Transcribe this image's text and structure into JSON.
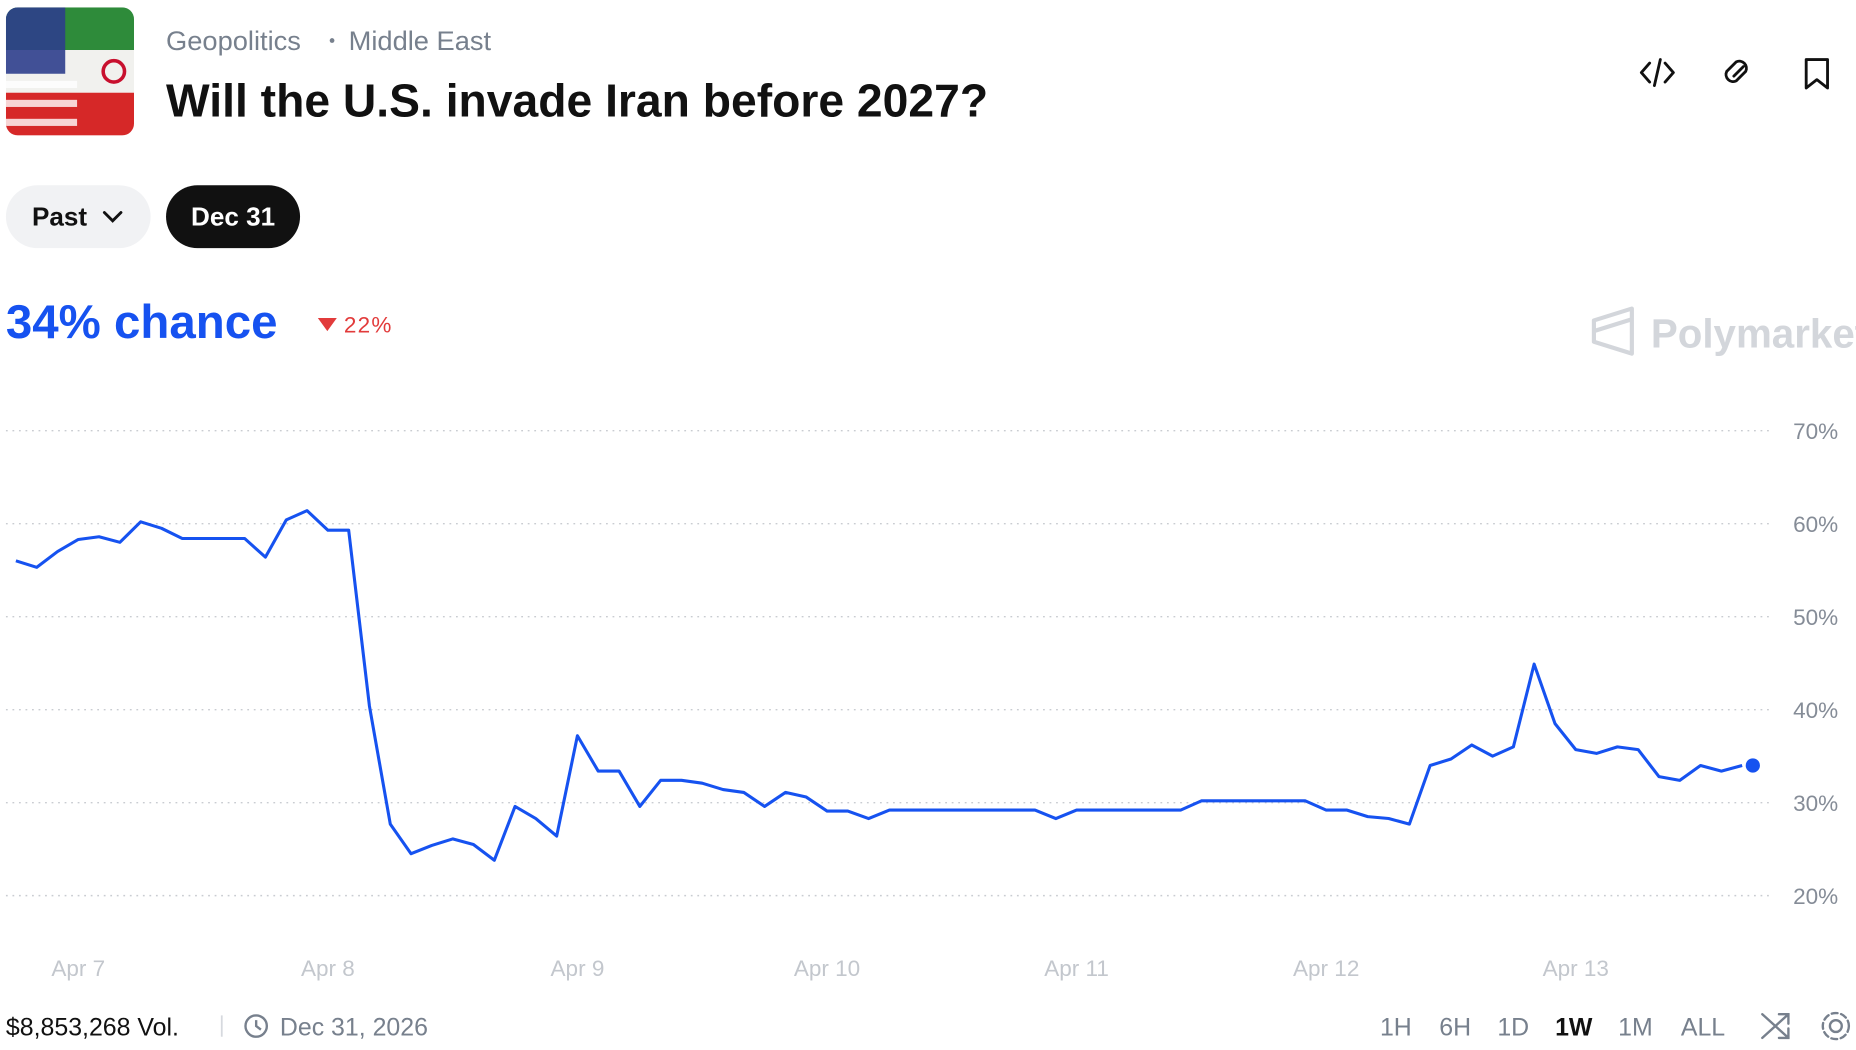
{
  "header": {
    "breadcrumbs": [
      "Geopolitics",
      "Middle East"
    ],
    "title": "Will the U.S. invade Iran before 2027?"
  },
  "filters": [
    "Past",
    "Dec 31"
  ],
  "chance": "34% chance",
  "change": "22%",
  "watermark": "Polymarket",
  "footer": {
    "volume": "$8,853,268 Vol.",
    "end_date": "Dec 31, 2026",
    "timeframes": [
      "1H",
      "6H",
      "1D",
      "1W",
      "1M",
      "ALL"
    ],
    "active_timeframe": 3
  },
  "chart_data": {
    "type": "line",
    "categories": [
      null,
      null,
      null,
      "Apr 7",
      null,
      null,
      null,
      null,
      null,
      null,
      null,
      null,
      null,
      null,
      null,
      "Apr 8",
      null,
      null,
      null,
      null,
      null,
      null,
      null,
      null,
      null,
      null,
      null,
      "Apr 9",
      null,
      null,
      null,
      null,
      null,
      null,
      null,
      null,
      null,
      null,
      null,
      "Apr 10",
      null,
      null,
      null,
      null,
      null,
      null,
      null,
      null,
      null,
      null,
      null,
      "Apr 11",
      null,
      null,
      null,
      null,
      null,
      null,
      null,
      null,
      null,
      null,
      null,
      "Apr 12",
      null,
      null,
      null,
      null,
      null,
      null,
      null,
      null,
      null,
      null,
      null,
      "Apr 13",
      null,
      null,
      null,
      null,
      null,
      null,
      null,
      null
    ],
    "series": [
      {
        "name": "Dec 31",
        "color": "#1652f0",
        "values": [
          56,
          55.3,
          57,
          58.3,
          58.6,
          58,
          60.2,
          59.5,
          58.4,
          58.4,
          58.4,
          58.4,
          56.4,
          60.4,
          61.4,
          59.3,
          59.3,
          40.4,
          27.7,
          24.5,
          25.4,
          26.1,
          25.5,
          23.8,
          29.6,
          28.3,
          26.4,
          37.2,
          33.4,
          33.4,
          29.6,
          32.4,
          32.4,
          32.1,
          31.4,
          31.1,
          29.6,
          31.1,
          30.6,
          29.1,
          29.1,
          28.3,
          29.2,
          29.2,
          29.2,
          29.2,
          29.2,
          29.2,
          29.2,
          29.2,
          28.3,
          29.2,
          29.2,
          29.2,
          29.2,
          29.2,
          29.2,
          30.2,
          30.2,
          30.2,
          30.2,
          30.2,
          30.2,
          29.2,
          29.2,
          28.5,
          28.3,
          27.7,
          34,
          34.7,
          36.2,
          35,
          36,
          44.9,
          38.5,
          35.7,
          35.3,
          36,
          35.7,
          32.8,
          32.4,
          34,
          33.4,
          34
        ]
      }
    ],
    "ylim": [
      16,
      74
    ],
    "yticks": [
      {
        "value": 20,
        "label": "20%"
      },
      {
        "value": 30,
        "label": "30%"
      },
      {
        "value": 40,
        "label": "40%"
      },
      {
        "value": 50,
        "label": "50%"
      },
      {
        "value": 60,
        "label": "60%"
      },
      {
        "value": 70,
        "label": "70%"
      }
    ],
    "grid": true
  }
}
